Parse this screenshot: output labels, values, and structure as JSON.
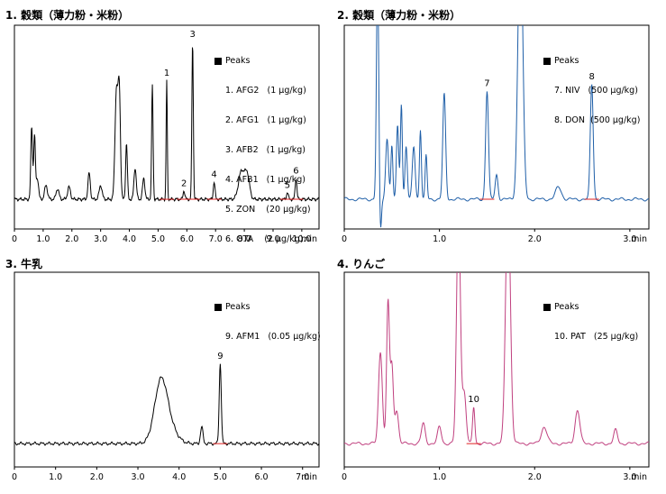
{
  "charts": [
    {
      "title": "1. 穀類（薄力粉・米粉）",
      "legend_header": "Peaks",
      "legend": [
        "1. AFG2   (1 μg/kg)",
        "2. AFG1   (1 μg/kg)",
        "3. AFB2   (1 μg/kg)",
        "4. AFB1   (1 μg/kg)",
        "5. ZON    (20 μg/kg)",
        "6. OTA    (2 μg/kg)"
      ],
      "x_tick_labels": [
        "0",
        "1.0",
        "2.0",
        "3.0",
        "4.0",
        "5.0",
        "6.0",
        "7.0",
        "8.0",
        "9.0",
        "10.0",
        "min"
      ],
      "peak_labels": [
        "1",
        "2",
        "3",
        "4",
        "5",
        "6"
      ],
      "line_color": "#000000"
    },
    {
      "title": "2. 穀類（薄力粉・米粉）",
      "legend_header": "Peaks",
      "legend": [
        "7. NIV   (500 μg/kg)",
        "8. DON  (500 μg/kg)"
      ],
      "x_tick_labels": [
        "0",
        "1.0",
        "2.0",
        "3.0",
        "min"
      ],
      "peak_labels": [
        "7",
        "8"
      ],
      "line_color": "#1f5fa8"
    },
    {
      "title": "3. 牛乳",
      "legend_header": "Peaks",
      "legend": [
        "9. AFM1   (0.05 μg/kg)"
      ],
      "x_tick_labels": [
        "0",
        "1.0",
        "2.0",
        "3.0",
        "4.0",
        "5.0",
        "6.0",
        "7.0",
        "min"
      ],
      "peak_labels": [
        "9"
      ],
      "line_color": "#000000"
    },
    {
      "title": "4. りんご",
      "legend_header": "Peaks",
      "legend": [
        "10. PAT   (25 μg/kg)"
      ],
      "x_tick_labels": [
        "0",
        "1.0",
        "2.0",
        "3.0",
        "min"
      ],
      "peak_labels": [
        "10"
      ],
      "line_color": "#c0407f"
    }
  ],
  "chart_data": [
    {
      "type": "line",
      "title": "1. 穀類（薄力粉・米粉）",
      "xlabel": "min",
      "xlim": [
        0,
        10.6
      ],
      "ylim": [
        0,
        1
      ],
      "grid": false,
      "legend_position": "top-right",
      "baseline": 0.03,
      "peaks": [
        {
          "x": 0.6,
          "y": 0.42,
          "w": 0.03
        },
        {
          "x": 0.7,
          "y": 0.36,
          "w": 0.03
        },
        {
          "x": 0.8,
          "y": 0.12,
          "w": 0.04
        },
        {
          "x": 1.1,
          "y": 0.08,
          "w": 0.05
        },
        {
          "x": 1.5,
          "y": 0.06,
          "w": 0.05
        },
        {
          "x": 1.9,
          "y": 0.07,
          "w": 0.05
        },
        {
          "x": 2.6,
          "y": 0.15,
          "w": 0.04
        },
        {
          "x": 3.0,
          "y": 0.08,
          "w": 0.05
        },
        {
          "x": 3.55,
          "y": 0.62,
          "w": 0.05
        },
        {
          "x": 3.65,
          "y": 0.6,
          "w": 0.04
        },
        {
          "x": 3.9,
          "y": 0.32,
          "w": 0.03
        },
        {
          "x": 4.2,
          "y": 0.18,
          "w": 0.04
        },
        {
          "x": 4.5,
          "y": 0.12,
          "w": 0.04
        },
        {
          "x": 4.8,
          "y": 0.65,
          "w": 0.025
        },
        {
          "x": 5.3,
          "y": 0.68,
          "w": 0.02
        },
        {
          "x": 5.9,
          "y": 0.05,
          "w": 0.03
        },
        {
          "x": 6.2,
          "y": 0.9,
          "w": 0.025
        },
        {
          "x": 6.95,
          "y": 0.1,
          "w": 0.03
        },
        {
          "x": 7.9,
          "y": 0.16,
          "w": 0.1
        },
        {
          "x": 8.1,
          "y": 0.14,
          "w": 0.08
        },
        {
          "x": 9.5,
          "y": 0.04,
          "w": 0.03
        },
        {
          "x": 9.8,
          "y": 0.12,
          "w": 0.03
        }
      ],
      "labeled_peaks": [
        {
          "label": "1",
          "x": 5.3,
          "y": 0.68
        },
        {
          "label": "2",
          "x": 5.9,
          "y": 0.05
        },
        {
          "label": "3",
          "x": 6.2,
          "y": 0.9
        },
        {
          "label": "4",
          "x": 6.95,
          "y": 0.1
        },
        {
          "label": "5",
          "x": 9.5,
          "y": 0.04
        },
        {
          "label": "6",
          "x": 9.8,
          "y": 0.12
        }
      ]
    },
    {
      "type": "line",
      "title": "2. 穀類（薄力粉・米粉）",
      "xlabel": "min",
      "xlim": [
        0,
        3.2
      ],
      "ylim": [
        0,
        1
      ],
      "grid": false,
      "legend_position": "top-right",
      "baseline": 0.03,
      "peaks": [
        {
          "x": 0.35,
          "y": 1.3,
          "w": 0.012
        },
        {
          "x": 0.38,
          "y": -0.2,
          "w": 0.01
        },
        {
          "x": 0.45,
          "y": 0.35,
          "w": 0.015
        },
        {
          "x": 0.5,
          "y": 0.3,
          "w": 0.01
        },
        {
          "x": 0.56,
          "y": 0.42,
          "w": 0.012
        },
        {
          "x": 0.6,
          "y": 0.55,
          "w": 0.01
        },
        {
          "x": 0.65,
          "y": 0.3,
          "w": 0.012
        },
        {
          "x": 0.73,
          "y": 0.3,
          "w": 0.015
        },
        {
          "x": 0.8,
          "y": 0.4,
          "w": 0.01
        },
        {
          "x": 0.86,
          "y": 0.25,
          "w": 0.01
        },
        {
          "x": 1.05,
          "y": 0.6,
          "w": 0.015
        },
        {
          "x": 1.5,
          "y": 0.62,
          "w": 0.015
        },
        {
          "x": 1.6,
          "y": 0.14,
          "w": 0.015
        },
        {
          "x": 1.85,
          "y": 1.6,
          "w": 0.025
        },
        {
          "x": 2.25,
          "y": 0.07,
          "w": 0.03
        },
        {
          "x": 2.6,
          "y": 0.66,
          "w": 0.015
        }
      ],
      "labeled_peaks": [
        {
          "label": "7",
          "x": 1.5,
          "y": 0.62
        },
        {
          "label": "8",
          "x": 2.6,
          "y": 0.66
        }
      ]
    },
    {
      "type": "line",
      "title": "3. 牛乳",
      "xlabel": "min",
      "xlim": [
        0,
        7.4
      ],
      "ylim": [
        0,
        1
      ],
      "grid": false,
      "legend_position": "top-right",
      "baseline": 0.0,
      "peaks": [
        {
          "x": 3.55,
          "y": 0.3,
          "w": 0.15
        },
        {
          "x": 3.7,
          "y": 0.12,
          "w": 0.2
        },
        {
          "x": 4.55,
          "y": 0.1,
          "w": 0.03
        },
        {
          "x": 5.0,
          "y": 0.48,
          "w": 0.025
        }
      ],
      "labeled_peaks": [
        {
          "label": "9",
          "x": 5.0,
          "y": 0.48
        }
      ]
    },
    {
      "type": "line",
      "title": "4. りんご",
      "xlabel": "min",
      "xlim": [
        0,
        3.2
      ],
      "ylim": [
        0,
        1
      ],
      "grid": false,
      "legend_position": "top-right",
      "baseline": 0.0,
      "peaks": [
        {
          "x": 0.38,
          "y": 0.55,
          "w": 0.02
        },
        {
          "x": 0.46,
          "y": 0.85,
          "w": 0.015
        },
        {
          "x": 0.5,
          "y": 0.45,
          "w": 0.015
        },
        {
          "x": 0.55,
          "y": 0.2,
          "w": 0.02
        },
        {
          "x": 0.83,
          "y": 0.12,
          "w": 0.02
        },
        {
          "x": 1.0,
          "y": 0.1,
          "w": 0.02
        },
        {
          "x": 1.2,
          "y": 1.4,
          "w": 0.02
        },
        {
          "x": 1.26,
          "y": 0.3,
          "w": 0.02
        },
        {
          "x": 1.36,
          "y": 0.22,
          "w": 0.012
        },
        {
          "x": 1.72,
          "y": 1.5,
          "w": 0.025
        },
        {
          "x": 2.1,
          "y": 0.1,
          "w": 0.03
        },
        {
          "x": 2.45,
          "y": 0.2,
          "w": 0.025
        },
        {
          "x": 2.85,
          "y": 0.08,
          "w": 0.02
        }
      ],
      "labeled_peaks": [
        {
          "label": "10",
          "x": 1.36,
          "y": 0.22
        }
      ]
    }
  ]
}
